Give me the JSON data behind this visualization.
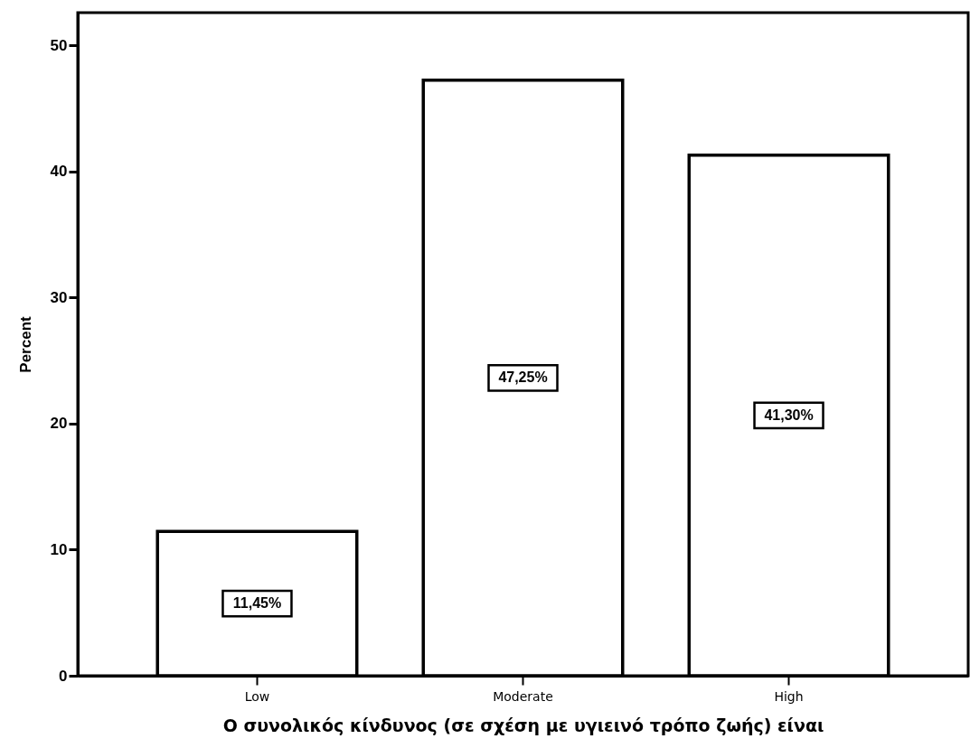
{
  "chart_data": {
    "type": "bar",
    "xlabel": "Ο συνολικός κίνδυνος (σε σχέση με υγιεινό τρόπο ζωής) είναι",
    "ylabel": "Percent",
    "categories": [
      "Low",
      "Moderate",
      "High"
    ],
    "values": [
      11.45,
      47.25,
      41.3
    ],
    "color": "#ffffff",
    "value_labels": [
      "11,45%",
      "47,25%",
      "41,30%"
    ],
    "ylim": [
      0,
      52.6
    ],
    "yticks": [
      0,
      10,
      20,
      30,
      40,
      50
    ],
    "grid": false
  }
}
